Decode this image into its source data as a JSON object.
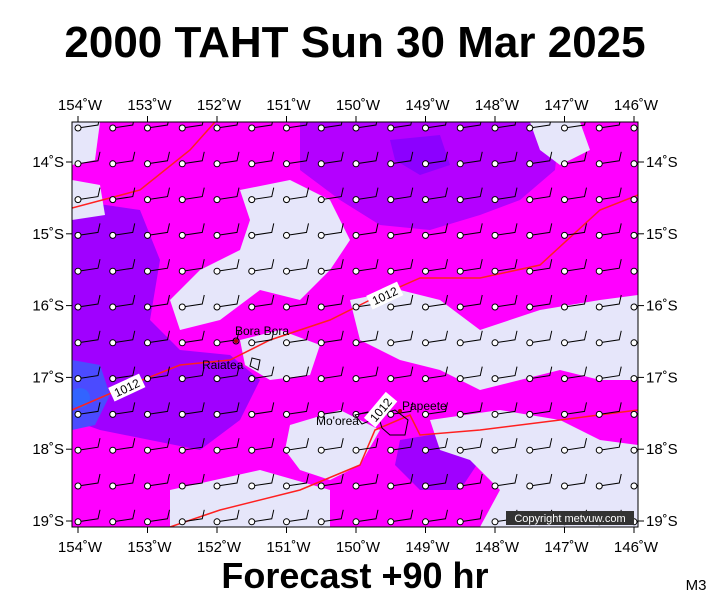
{
  "header": {
    "title": "2000 TAHT Sun 30 Mar 2025"
  },
  "footer": {
    "forecast": "Forecast +90 hr",
    "model": "M3"
  },
  "map": {
    "lon_labels": [
      "154˚W",
      "153˚W",
      "152˚W",
      "151˚W",
      "150˚W",
      "149˚W",
      "148˚W",
      "147˚W",
      "146˚W"
    ],
    "lat_labels": [
      "14˚S",
      "15˚S",
      "16˚S",
      "17˚S",
      "18˚S",
      "19˚S"
    ],
    "places": [
      "Bora Bora",
      "Raiatea",
      "Mo'orea",
      "Papeete"
    ],
    "isobar_labels": [
      "1012",
      "1012",
      "1012"
    ],
    "copyright": "Copyright metvuw.com"
  }
}
